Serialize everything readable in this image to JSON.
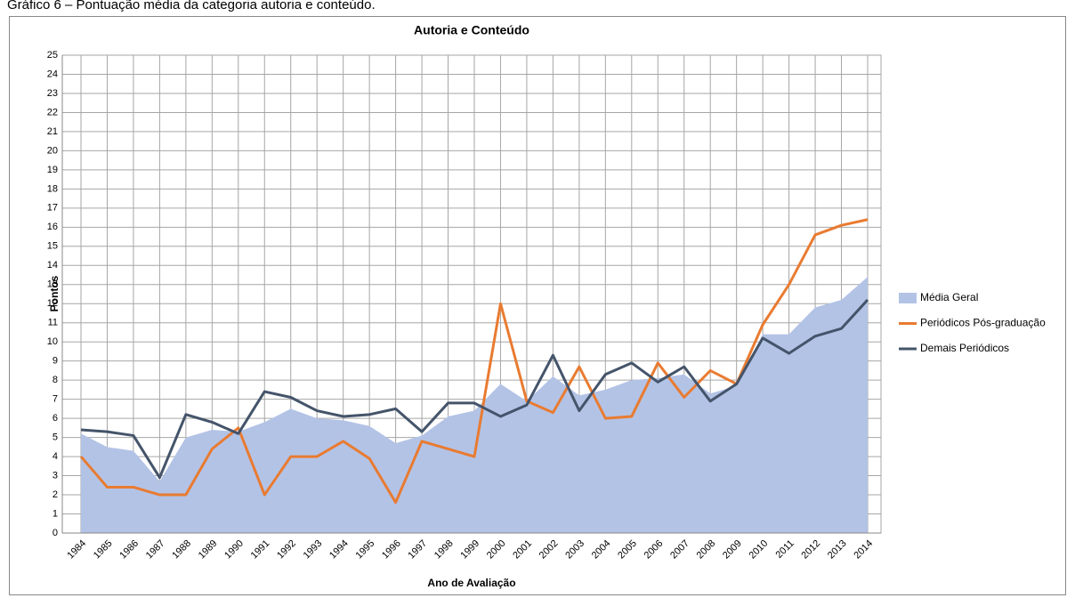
{
  "caption": "Gráfico 6 – Pontuação média da categoria autoria e conteúdo.",
  "chart_data": {
    "type": "line",
    "title": "Autoria e Conteúdo",
    "x_label": "Ano de Avaliação",
    "y_label": "Pontos",
    "categories": [
      "1984",
      "1985",
      "1986",
      "1987",
      "1988",
      "1989",
      "1990",
      "1991",
      "1992",
      "1993",
      "1994",
      "1995",
      "1996",
      "1997",
      "1998",
      "1999",
      "2000",
      "2001",
      "2002",
      "2003",
      "2004",
      "2005",
      "2006",
      "2007",
      "2008",
      "2009",
      "2010",
      "2011",
      "2012",
      "2013",
      "2014"
    ],
    "series": [
      {
        "name": "Média Geral",
        "style": "area",
        "color": "#b3c3e6",
        "values": [
          5.2,
          4.5,
          4.3,
          2.7,
          5.0,
          5.4,
          5.3,
          5.8,
          6.5,
          6.0,
          5.9,
          5.6,
          4.7,
          5.1,
          6.1,
          6.4,
          7.8,
          6.9,
          8.2,
          7.2,
          7.5,
          8.0,
          8.1,
          8.3,
          7.3,
          7.7,
          10.4,
          10.4,
          11.8,
          12.2,
          13.4
        ]
      },
      {
        "name": "Periódicos  Pós-graduação",
        "style": "line",
        "color": "#e97b31",
        "values": [
          4.0,
          2.4,
          2.4,
          2.0,
          2.0,
          4.4,
          5.5,
          2.0,
          4.0,
          4.0,
          4.8,
          3.9,
          1.6,
          4.8,
          4.4,
          4.0,
          12.0,
          6.9,
          6.3,
          8.7,
          6.0,
          6.1,
          8.9,
          7.1,
          8.5,
          7.8,
          10.9,
          13.0,
          15.6,
          16.1,
          16.4
        ]
      },
      {
        "name": "Demais Periódicos",
        "style": "line",
        "color": "#44546a",
        "values": [
          5.4,
          5.3,
          5.1,
          2.9,
          6.2,
          5.8,
          5.2,
          7.4,
          7.1,
          6.4,
          6.1,
          6.2,
          6.5,
          5.3,
          6.8,
          6.8,
          6.1,
          6.7,
          9.3,
          6.4,
          8.3,
          8.9,
          7.9,
          8.7,
          6.9,
          7.8,
          10.2,
          9.4,
          10.3,
          10.7,
          12.2
        ]
      }
    ],
    "ylim": [
      0,
      25
    ],
    "yticks": [
      0,
      1,
      2,
      3,
      4,
      5,
      6,
      7,
      8,
      9,
      10,
      11,
      12,
      13,
      14,
      15,
      16,
      17,
      18,
      19,
      20,
      21,
      22,
      23,
      24,
      25
    ],
    "grid": true,
    "legend": "right"
  }
}
